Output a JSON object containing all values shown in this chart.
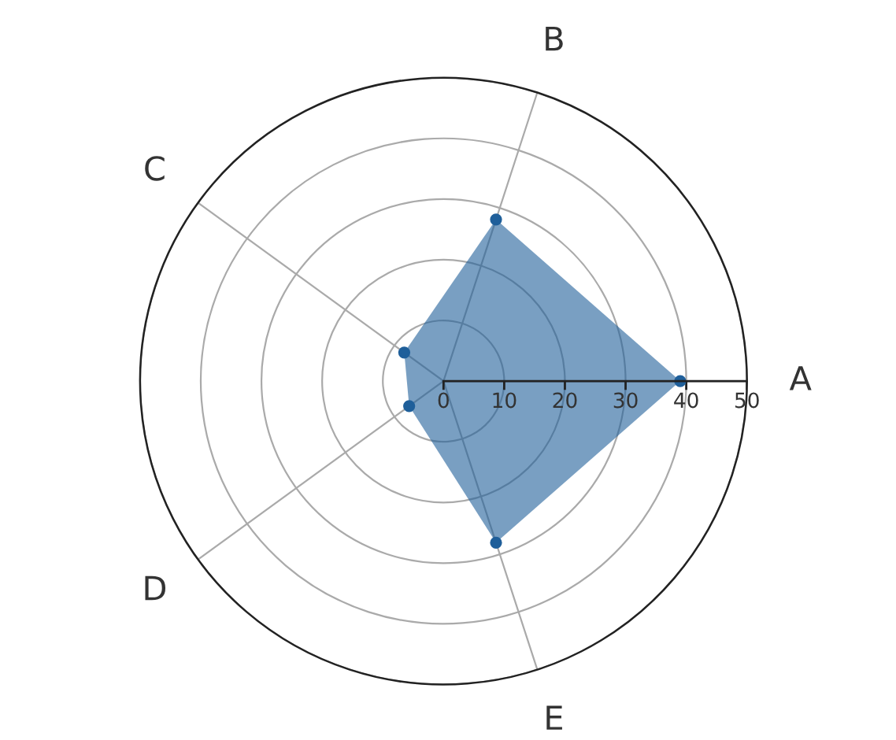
{
  "chart_data": {
    "type": "radar",
    "categories": [
      "B",
      "A",
      "E",
      "D",
      "C"
    ],
    "series": [
      {
        "color": "#1f5f9a",
        "values": [
          28,
          39,
          28,
          7,
          8
        ]
      }
    ],
    "ylim": [
      0,
      50
    ],
    "yticks": [
      0,
      10,
      20,
      30,
      40,
      50
    ],
    "marker": "circle",
    "grid": true
  }
}
